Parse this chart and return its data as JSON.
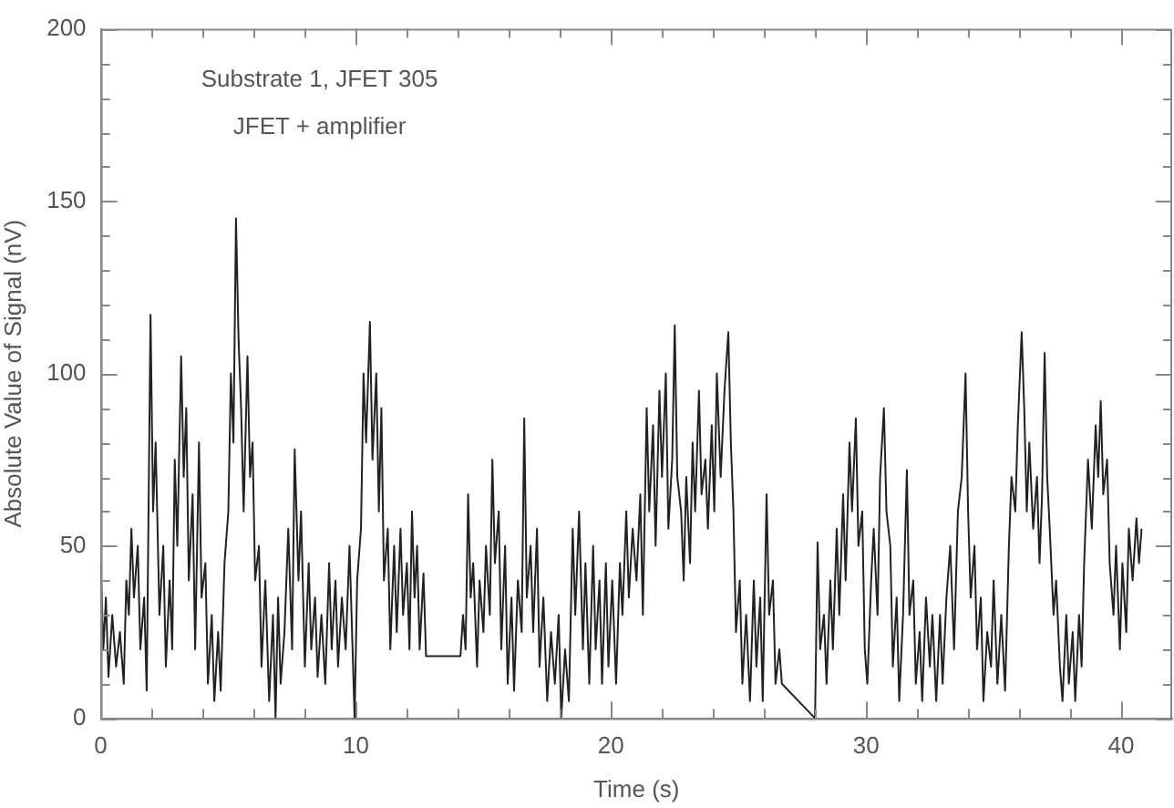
{
  "chart_data": {
    "type": "line",
    "xlabel": "Time (s)",
    "ylabel": "Absolute Value of Signal (nV)",
    "annotations": [
      "Substrate 1, JFET 305",
      "JFET + amplifier"
    ],
    "xlim": [
      0,
      42
    ],
    "xticks": [
      0,
      {
        "value": 2,
        "label": null
      },
      {
        "value": 4,
        "label": null
      },
      {
        "value": 6,
        "label": null
      },
      {
        "value": 8,
        "label": null
      },
      10,
      {
        "value": 12,
        "label": null
      },
      {
        "value": 14,
        "label": null
      },
      {
        "value": 16,
        "label": null
      },
      {
        "value": 18,
        "label": null
      },
      20,
      {
        "value": 22,
        "label": null
      },
      {
        "value": 24,
        "label": null
      },
      {
        "value": 26,
        "label": null
      },
      {
        "value": 28,
        "label": null
      },
      30,
      {
        "value": 32,
        "label": null
      },
      {
        "value": 34,
        "label": null
      },
      {
        "value": 36,
        "label": null
      },
      {
        "value": 38,
        "label": null
      },
      40
    ],
    "ylim": [
      0,
      200
    ],
    "yticks": [
      0,
      {
        "value": 10,
        "label": null
      },
      {
        "value": 20,
        "label": null
      },
      {
        "value": 30,
        "label": null
      },
      {
        "value": 40,
        "label": null
      },
      50,
      {
        "value": 60,
        "label": null
      },
      {
        "value": 70,
        "label": null
      },
      {
        "value": 80,
        "label": null
      },
      {
        "value": 90,
        "label": null
      },
      100,
      {
        "value": 110,
        "label": null
      },
      {
        "value": 120,
        "label": null
      },
      {
        "value": 130,
        "label": null
      },
      {
        "value": 140,
        "label": null
      },
      150,
      {
        "value": 160,
        "label": null
      },
      {
        "value": 170,
        "label": null
      },
      {
        "value": 180,
        "label": null
      },
      {
        "value": 190,
        "label": null
      },
      200
    ],
    "grid": false,
    "legend": false,
    "marker": "none",
    "line_style": "solid",
    "series": [
      {
        "color": "#222222",
        "x": [
          0.0,
          0.1,
          0.2,
          0.3,
          0.45,
          0.6,
          0.75,
          0.9,
          1.0,
          1.1,
          1.2,
          1.3,
          1.45,
          1.55,
          1.7,
          1.8,
          1.95,
          2.05,
          2.15,
          2.3,
          2.45,
          2.55,
          2.7,
          2.8,
          2.9,
          3.0,
          3.15,
          3.25,
          3.35,
          3.45,
          3.6,
          3.7,
          3.85,
          3.95,
          4.1,
          4.2,
          4.35,
          4.45,
          4.6,
          4.7,
          4.85,
          5.0,
          5.1,
          5.2,
          5.3,
          5.4,
          5.5,
          5.6,
          5.75,
          5.85,
          5.95,
          6.05,
          6.2,
          6.3,
          6.45,
          6.6,
          6.75,
          6.85,
          6.95,
          7.05,
          7.2,
          7.35,
          7.5,
          7.6,
          7.75,
          7.85,
          8.0,
          8.15,
          8.25,
          8.4,
          8.5,
          8.65,
          8.8,
          8.95,
          9.05,
          9.2,
          9.3,
          9.45,
          9.6,
          9.75,
          9.85,
          9.95,
          10.05,
          10.2,
          10.3,
          10.4,
          10.55,
          10.65,
          10.8,
          10.9,
          11.0,
          11.1,
          11.25,
          11.35,
          11.5,
          11.6,
          11.75,
          11.85,
          12.0,
          12.1,
          12.2,
          12.3,
          12.4,
          12.5,
          12.65,
          12.75,
          14.1,
          14.2,
          14.3,
          14.4,
          14.5,
          14.6,
          14.75,
          14.85,
          15.0,
          15.1,
          15.25,
          15.35,
          15.45,
          15.6,
          15.7,
          15.85,
          15.95,
          16.1,
          16.2,
          16.35,
          16.5,
          16.6,
          16.7,
          16.85,
          16.95,
          17.1,
          17.2,
          17.35,
          17.5,
          17.65,
          17.8,
          17.95,
          18.05,
          18.2,
          18.35,
          18.5,
          18.6,
          18.75,
          18.9,
          19.0,
          19.15,
          19.3,
          19.4,
          19.55,
          19.65,
          19.8,
          19.9,
          20.05,
          20.2,
          20.35,
          20.45,
          20.6,
          20.7,
          20.85,
          21.0,
          21.15,
          21.25,
          21.4,
          21.5,
          21.65,
          21.75,
          21.9,
          22.0,
          22.15,
          22.25,
          22.4,
          22.5,
          22.6,
          22.75,
          22.85,
          22.95,
          23.1,
          23.2,
          23.3,
          23.45,
          23.55,
          23.7,
          23.8,
          23.95,
          24.05,
          24.15,
          24.3,
          24.45,
          24.6,
          24.7,
          24.8,
          24.9,
          25.05,
          25.15,
          25.3,
          25.45,
          25.6,
          25.7,
          25.85,
          25.95,
          26.1,
          26.2,
          26.35,
          26.45,
          26.6,
          26.7,
          28.0,
          28.1,
          28.2,
          28.35,
          28.45,
          28.6,
          28.7,
          28.85,
          28.95,
          29.1,
          29.2,
          29.35,
          29.45,
          29.6,
          29.7,
          29.85,
          29.95,
          30.05,
          30.2,
          30.3,
          30.45,
          30.55,
          30.7,
          30.8,
          30.95,
          31.05,
          31.2,
          31.3,
          31.45,
          31.6,
          31.7,
          31.85,
          31.95,
          32.1,
          32.2,
          32.35,
          32.5,
          32.6,
          32.75,
          32.9,
          33.0,
          33.15,
          33.3,
          33.45,
          33.6,
          33.75,
          33.9,
          34.0,
          34.1,
          34.25,
          34.35,
          34.5,
          34.6,
          34.75,
          34.9,
          35.0,
          35.15,
          35.3,
          35.45,
          35.6,
          35.7,
          35.85,
          35.95,
          36.1,
          36.2,
          36.3,
          36.4,
          36.55,
          36.7,
          36.8,
          36.9,
          37.0,
          37.1,
          37.2,
          37.35,
          37.45,
          37.6,
          37.7,
          37.85,
          37.95,
          38.1,
          38.2,
          38.35,
          38.45,
          38.55,
          38.7,
          38.85,
          39.0,
          39.1,
          39.2,
          39.3,
          39.45,
          39.55,
          39.7,
          39.8,
          39.95,
          40.05,
          40.2,
          40.3,
          40.45,
          40.6,
          40.7,
          40.8
        ],
        "values": [
          45,
          20,
          35,
          12,
          30,
          15,
          25,
          10,
          40,
          30,
          55,
          35,
          50,
          20,
          35,
          8,
          117,
          60,
          80,
          30,
          50,
          15,
          40,
          20,
          75,
          50,
          105,
          70,
          90,
          40,
          65,
          20,
          80,
          35,
          45,
          10,
          30,
          5,
          25,
          8,
          45,
          60,
          100,
          80,
          145,
          110,
          90,
          60,
          105,
          70,
          80,
          40,
          50,
          15,
          40,
          5,
          30,
          0,
          35,
          10,
          25,
          55,
          20,
          78,
          40,
          60,
          15,
          45,
          20,
          35,
          12,
          30,
          10,
          45,
          20,
          40,
          15,
          35,
          20,
          50,
          25,
          0,
          40,
          55,
          100,
          80,
          115,
          75,
          100,
          60,
          90,
          40,
          55,
          20,
          50,
          25,
          55,
          30,
          45,
          20,
          60,
          35,
          50,
          20,
          42,
          18,
          18,
          30,
          20,
          65,
          35,
          45,
          15,
          40,
          25,
          50,
          30,
          75,
          45,
          60,
          20,
          50,
          10,
          35,
          8,
          40,
          25,
          87,
          35,
          50,
          25,
          55,
          15,
          35,
          5,
          25,
          10,
          30,
          0,
          20,
          5,
          55,
          30,
          60,
          20,
          45,
          10,
          50,
          20,
          40,
          10,
          45,
          15,
          40,
          10,
          45,
          30,
          60,
          35,
          55,
          40,
          65,
          30,
          90,
          60,
          85,
          50,
          95,
          70,
          100,
          55,
          75,
          114,
          70,
          60,
          40,
          70,
          45,
          80,
          60,
          95,
          65,
          75,
          55,
          85,
          60,
          100,
          70,
          95,
          112,
          80,
          60,
          25,
          40,
          10,
          30,
          5,
          40,
          15,
          35,
          5,
          65,
          30,
          40,
          10,
          20,
          10,
          0,
          51,
          20,
          30,
          10,
          40,
          20,
          55,
          30,
          65,
          40,
          80,
          60,
          87,
          50,
          60,
          20,
          10,
          40,
          55,
          30,
          70,
          90,
          60,
          50,
          15,
          35,
          5,
          30,
          72,
          30,
          40,
          10,
          25,
          5,
          35,
          15,
          30,
          5,
          30,
          10,
          35,
          50,
          20,
          60,
          70,
          100,
          60,
          35,
          50,
          20,
          35,
          5,
          25,
          15,
          40,
          10,
          30,
          8,
          50,
          70,
          60,
          85,
          112,
          90,
          60,
          80,
          55,
          70,
          45,
          65,
          106,
          70,
          55,
          30,
          40,
          15,
          5,
          30,
          10,
          25,
          5,
          30,
          15,
          45,
          75,
          55,
          85,
          70,
          92,
          65,
          75,
          45,
          30,
          50,
          20,
          45,
          25,
          55,
          40,
          58,
          45,
          55
        ]
      }
    ]
  }
}
